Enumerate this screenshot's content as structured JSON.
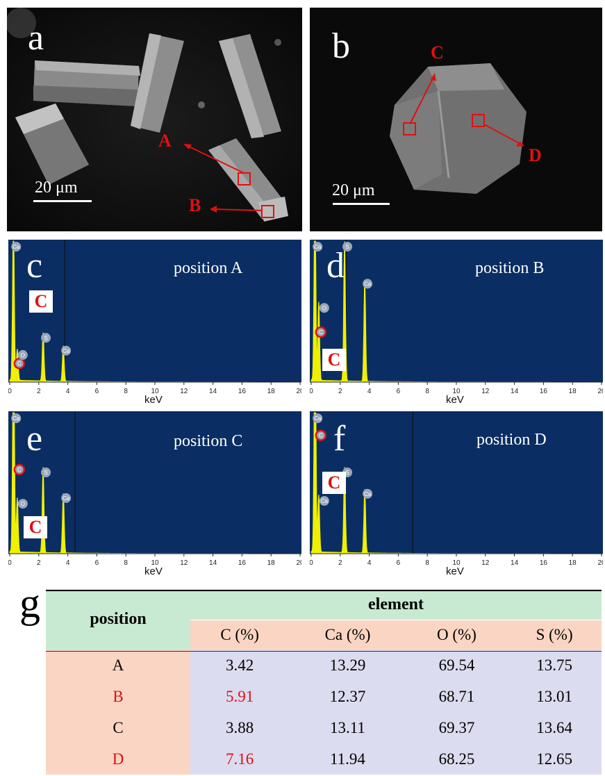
{
  "panels": {
    "a": {
      "letter": "a",
      "scale": "20 μm",
      "markers": [
        "A",
        "B"
      ]
    },
    "b": {
      "letter": "b",
      "scale": "20 μm",
      "markers": [
        "C",
        "D"
      ]
    }
  },
  "spectra": [
    {
      "letter": "c",
      "position_label": "position A",
      "element_tag": "C",
      "peaks": [
        "Ca",
        "C",
        "O",
        "S",
        "Ca"
      ]
    },
    {
      "letter": "d",
      "position_label": "position B",
      "element_tag": "C",
      "peaks": [
        "Ca",
        "O",
        "C",
        "S",
        "Ca"
      ]
    },
    {
      "letter": "e",
      "position_label": "position C",
      "element_tag": "C",
      "peaks": [
        "Ca",
        "C",
        "O",
        "S",
        "Ca"
      ]
    },
    {
      "letter": "f",
      "position_label": "position D",
      "element_tag": "C",
      "peaks": [
        "Ca",
        "C",
        "Ca",
        "S",
        "Ca"
      ]
    }
  ],
  "spectrum_axis": {
    "xlabel": "keV",
    "ticks": [
      "0",
      "2",
      "4",
      "6",
      "8",
      "10",
      "12",
      "14",
      "16",
      "18",
      "20"
    ]
  },
  "table": {
    "letter": "g",
    "header_position": "position",
    "header_group": "element",
    "columns": [
      "C (%)",
      "Ca (%)",
      "O (%)",
      "S (%)"
    ],
    "rows": [
      {
        "position": "A",
        "values": [
          "3.42",
          "13.29",
          "69.54",
          "13.75"
        ],
        "highlight": false
      },
      {
        "position": "B",
        "values": [
          "5.91",
          "12.37",
          "68.71",
          "13.01"
        ],
        "highlight": true
      },
      {
        "position": "C",
        "values": [
          "3.88",
          "13.11",
          "69.37",
          "13.64"
        ],
        "highlight": false
      },
      {
        "position": "D",
        "values": [
          "7.16",
          "11.94",
          "68.25",
          "12.65"
        ],
        "highlight": true
      }
    ]
  },
  "colors": {
    "marker_red": "#e01010",
    "spectrum_bg": "#0a2e63",
    "spectrum_line": "#f0f000",
    "header_green": "#c8ead2",
    "header_peach": "#fbd5c3",
    "value_lavender": "#dcdcf0"
  }
}
